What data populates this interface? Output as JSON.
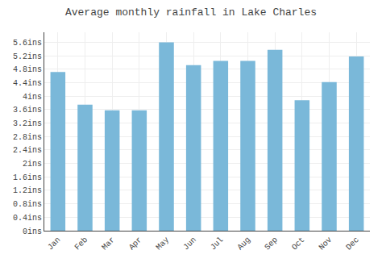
{
  "chart_data": {
    "type": "bar",
    "title": "Average monthly rainfall in Lake Charles",
    "categories": [
      "Jan",
      "Feb",
      "Mar",
      "Apr",
      "May",
      "Jun",
      "Jul",
      "Aug",
      "Sep",
      "Oct",
      "Nov",
      "Dec"
    ],
    "values": [
      4.72,
      3.75,
      3.58,
      3.58,
      5.6,
      4.92,
      5.05,
      5.05,
      5.38,
      3.88,
      4.42,
      5.18
    ],
    "color": "#7ab8d9",
    "ylim": [
      0,
      5.9
    ],
    "yticks": [
      {
        "value": 0,
        "label": "0ins"
      },
      {
        "value": 0.4,
        "label": "0.4ins"
      },
      {
        "value": 0.8,
        "label": "0.8ins"
      },
      {
        "value": 1.2,
        "label": "1.2ins"
      },
      {
        "value": 1.6,
        "label": "1.6ins"
      },
      {
        "value": 2.0,
        "label": "2ins"
      },
      {
        "value": 2.4,
        "label": "2.4ins"
      },
      {
        "value": 2.8,
        "label": "2.8ins"
      },
      {
        "value": 3.2,
        "label": "3.2ins"
      },
      {
        "value": 3.6,
        "label": "3.6ins"
      },
      {
        "value": 4.0,
        "label": "4ins"
      },
      {
        "value": 4.4,
        "label": "4.4ins"
      },
      {
        "value": 4.8,
        "label": "4.8ins"
      },
      {
        "value": 5.2,
        "label": "5.2ins"
      },
      {
        "value": 5.6,
        "label": "5.6ins"
      }
    ],
    "grid": true
  }
}
